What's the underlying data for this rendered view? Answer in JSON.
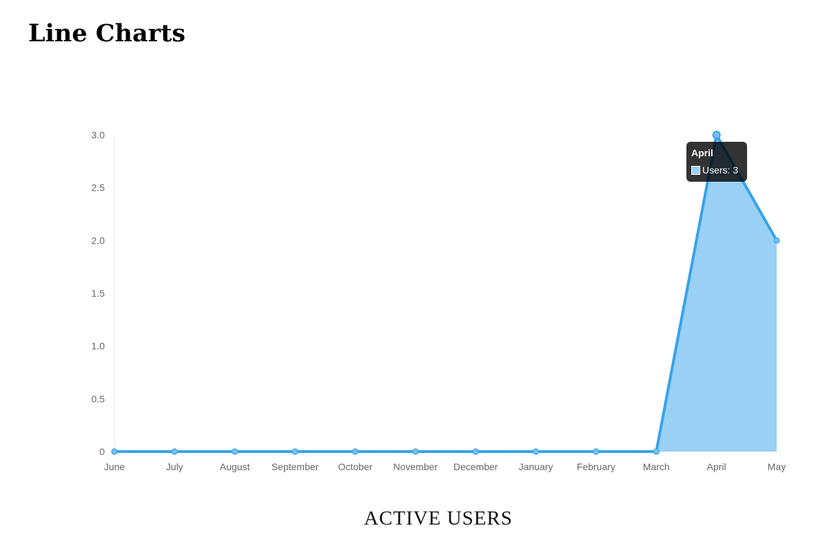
{
  "page": {
    "title": "Line Charts",
    "caption": "ACTIVE USERS"
  },
  "chart_data": {
    "type": "line",
    "categories": [
      "June",
      "July",
      "August",
      "September",
      "October",
      "November",
      "December",
      "January",
      "February",
      "March",
      "April",
      "May"
    ],
    "series": [
      {
        "name": "Users",
        "values": [
          0,
          0,
          0,
          0,
          0,
          0,
          0,
          0,
          0,
          0,
          3,
          2
        ],
        "line_color": "#36a2eb",
        "fill_color": "#9ad0f5",
        "filled": true
      }
    ],
    "y_ticks": [
      "3.0",
      "2.5",
      "2.0",
      "1.5",
      "1.0",
      "0.5",
      "0"
    ],
    "ylim": [
      0,
      3
    ],
    "grid": false,
    "tooltip": {
      "title": "April",
      "label": "Users: 3"
    }
  }
}
